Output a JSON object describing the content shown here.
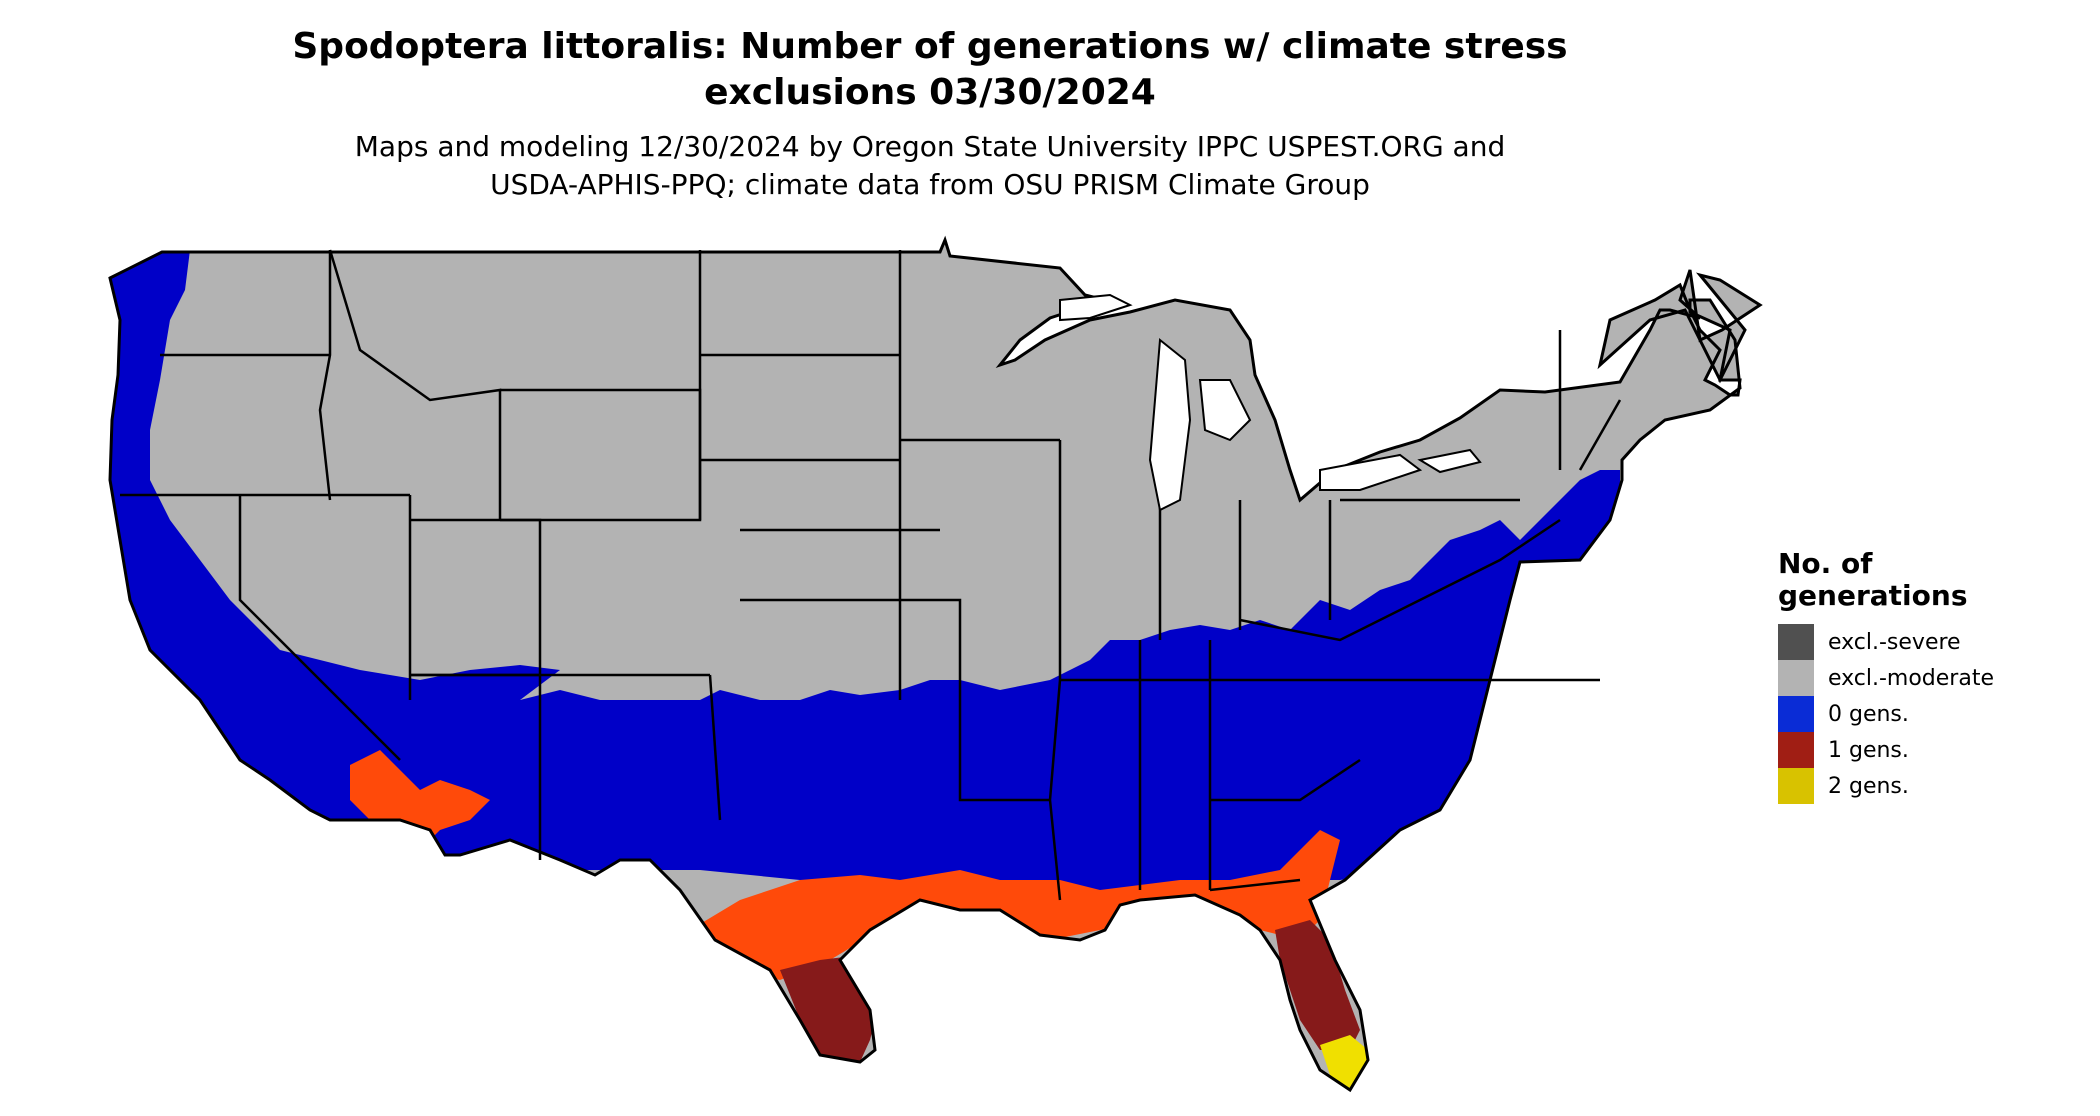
{
  "title": {
    "line1": "Spodoptera littoralis: Number of generations w/ climate stress",
    "line2": "exclusions 03/30/2024"
  },
  "subtitle": {
    "line1": "Maps and modeling 12/30/2024 by Oregon State University IPPC USPEST.ORG and",
    "line2": "USDA-APHIS-PPQ; climate data from OSU PRISM Climate Group"
  },
  "legend": {
    "title_line1": "No. of",
    "title_line2": "generations",
    "items": [
      {
        "label": "excl.-severe",
        "color": "#505050"
      },
      {
        "label": "excl.-moderate",
        "color": "#b3b3b3"
      },
      {
        "label": "0 gens.",
        "color": "#0a2cd6"
      },
      {
        "label": "1 gens.",
        "color": "#a01e14"
      },
      {
        "label": "2 gens.",
        "color": "#d8c200"
      }
    ]
  },
  "map_colors": {
    "excluded_moderate": "#b3b3b3",
    "excluded_severe": "#505050",
    "zero_gens": "#0000c8",
    "one_gen_light": "#ff4a0a",
    "one_gen_dark": "#861a1a",
    "two_gens": "#f0e000",
    "border": "#000000",
    "water": "#ffffff"
  }
}
